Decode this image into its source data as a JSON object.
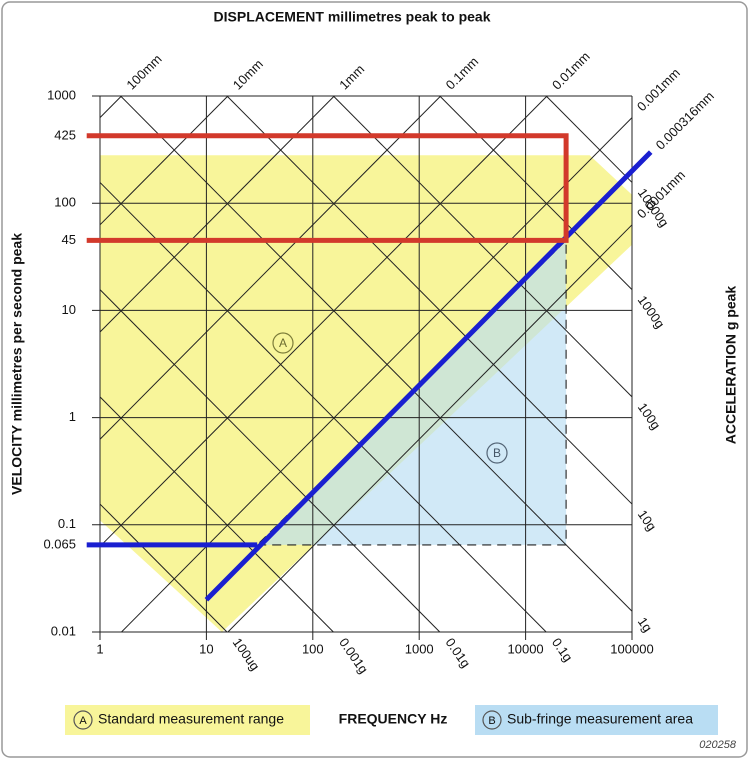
{
  "chart_data": {
    "type": "tripartite",
    "title": "DISPLACEMENT millimetres peak to peak",
    "x_label": "FREQUENCY Hz",
    "y_label": "VELOCITY millimetres per second peak",
    "y2_label": "ACCELERATION g peak",
    "log_x": true,
    "log_y": true,
    "xlim": [
      1,
      100000
    ],
    "ylim": [
      0.01,
      1000
    ],
    "xticks": [
      1,
      10,
      100,
      1000,
      10000,
      100000
    ],
    "yticks": [
      1000,
      425,
      100,
      45,
      10,
      1,
      0.1,
      0.065,
      0.01
    ],
    "grid": true,
    "displacement_lines": [
      {
        "value": 100,
        "label": "100mm"
      },
      {
        "value": 10,
        "label": "10mm"
      },
      {
        "value": 1,
        "label": "1mm"
      },
      {
        "value": 0.1,
        "label": "0.1mm"
      },
      {
        "value": 0.01,
        "label": "0.01mm"
      },
      {
        "value": 0.001,
        "label": "0.001mm"
      },
      {
        "value": 0.0001,
        "label": "0.0001mm"
      }
    ],
    "acceleration_lines": [
      {
        "value": 10000,
        "label": "10000g"
      },
      {
        "value": 1000,
        "label": "1000g"
      },
      {
        "value": 100,
        "label": "100g"
      },
      {
        "value": 10,
        "label": "10g"
      },
      {
        "value": 1,
        "label": "1g"
      },
      {
        "value": 0.1,
        "label": "0.1g"
      },
      {
        "value": 0.01,
        "label": "0.01g"
      },
      {
        "value": 0.001,
        "label": "0.001g"
      },
      {
        "value": 0.0001,
        "label": "100ug"
      }
    ],
    "regions": [
      {
        "name": "Standard measurement range",
        "marker": "A",
        "color": "#f8f59a",
        "x": [
          1,
          40000,
          100000,
          100000,
          14,
          1
        ],
        "y": [
          280,
          280,
          120,
          41,
          0.01,
          0.11
        ]
      },
      {
        "name": "Sub-fringe measurement area",
        "marker": "B",
        "color": "#b9ddf3",
        "x": [
          30,
          24000,
          24000
        ],
        "y": [
          0.065,
          0.065,
          45
        ]
      }
    ],
    "series": [
      {
        "name": "0.000316mm",
        "color": "#1a1fd0",
        "x": [
          0.75,
          30,
          null,
          10,
          150000
        ],
        "y": [
          0.065,
          0.065,
          null,
          0.02,
          300
        ]
      },
      {
        "color": "#d2392b",
        "x": [
          0.75,
          24000,
          24000,
          0.75
        ],
        "y": [
          425,
          425,
          45,
          45
        ]
      }
    ],
    "figure_id": "020258"
  }
}
